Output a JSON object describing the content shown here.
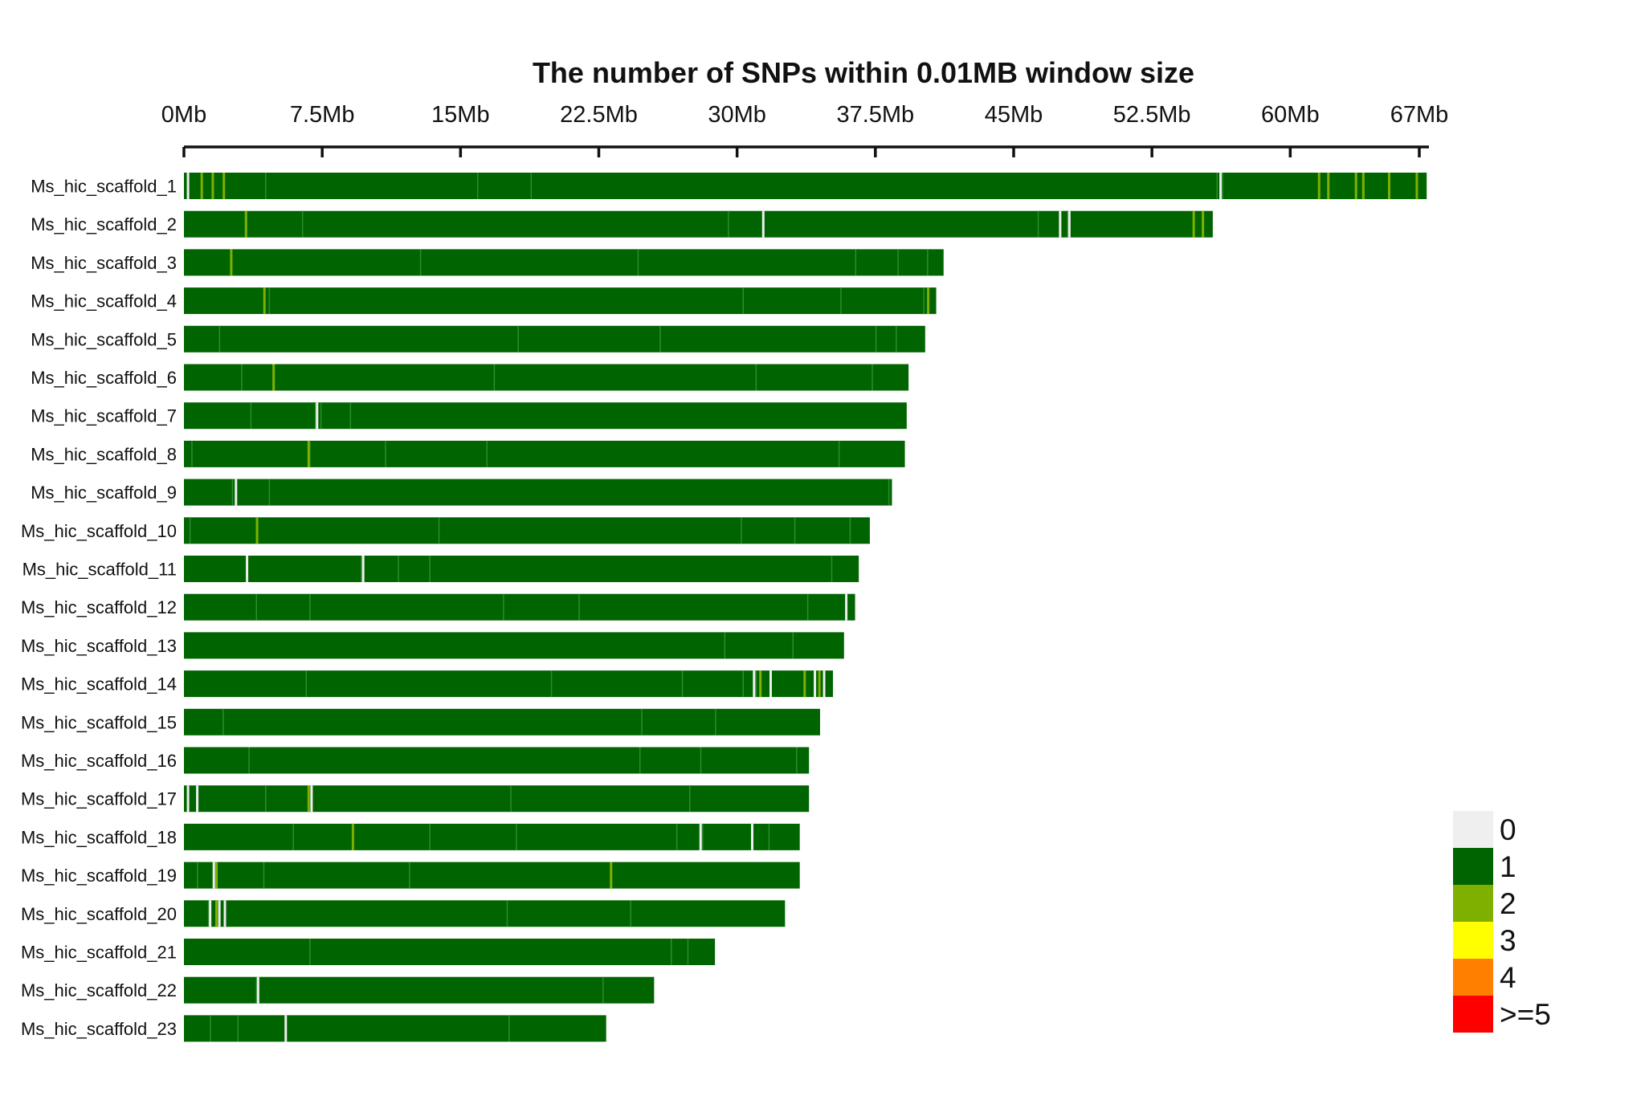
{
  "chart_data": {
    "type": "heatmap",
    "title": "The number of SNPs within 0.01MB window size",
    "xlim_mb": [
      0,
      67
    ],
    "x_ticks": [
      {
        "value": 0,
        "label": "0Mb"
      },
      {
        "value": 7.5,
        "label": "7.5Mb"
      },
      {
        "value": 15,
        "label": "15Mb"
      },
      {
        "value": 22.5,
        "label": "22.5Mb"
      },
      {
        "value": 30,
        "label": "30Mb"
      },
      {
        "value": 37.5,
        "label": "37.5Mb"
      },
      {
        "value": 45,
        "label": "45Mb"
      },
      {
        "value": 52.5,
        "label": "52.5Mb"
      },
      {
        "value": 60,
        "label": "60Mb"
      },
      {
        "value": 67,
        "label": "67Mb"
      }
    ],
    "legend": {
      "placement": "bottom-right",
      "items": [
        {
          "label": "0",
          "color": "#EFEFEF"
        },
        {
          "label": "1",
          "color": "#006400"
        },
        {
          "label": "2",
          "color": "#7FB000"
        },
        {
          "label": "3",
          "color": "#FFFF00"
        },
        {
          "label": "4",
          "color": "#FF8000"
        },
        {
          "label": ">=5",
          "color": "#FF0000"
        }
      ]
    },
    "rows": [
      {
        "name": "Ms_hic_scaffold_1",
        "length_mb": 67.4,
        "density1_gaps": [
          0.2,
          4.4,
          15.9,
          18.8,
          56.0,
          56.3
        ],
        "density2_marks": [
          0.9,
          1.5,
          2.1,
          61.5,
          62.0,
          63.5,
          63.9,
          65.3,
          66.8
        ],
        "density0_marks": [
          0.2,
          56.2
        ]
      },
      {
        "name": "Ms_hic_scaffold_2",
        "length_mb": 55.8,
        "density1_gaps": [
          6.4,
          29.5,
          31.4,
          46.3,
          47.5,
          47.9
        ],
        "density2_marks": [
          3.3,
          54.7,
          55.2
        ],
        "density0_marks": [
          31.4,
          47.5,
          48.0
        ]
      },
      {
        "name": "Ms_hic_scaffold_3",
        "length_mb": 41.2,
        "density1_gaps": [
          12.8,
          24.6,
          36.4,
          38.7,
          40.3
        ],
        "density2_marks": [
          2.5
        ],
        "density0_marks": []
      },
      {
        "name": "Ms_hic_scaffold_4",
        "length_mb": 40.8,
        "density1_gaps": [
          4.6,
          30.3,
          35.6,
          40.1
        ],
        "density2_marks": [
          4.3,
          40.3
        ],
        "density0_marks": []
      },
      {
        "name": "Ms_hic_scaffold_5",
        "length_mb": 40.2,
        "density1_gaps": [
          1.9,
          18.1,
          25.8,
          37.5,
          38.6
        ],
        "density2_marks": [],
        "density0_marks": []
      },
      {
        "name": "Ms_hic_scaffold_6",
        "length_mb": 39.3,
        "density1_gaps": [
          3.1,
          4.8,
          16.8,
          31.0,
          37.3
        ],
        "density2_marks": [
          4.8
        ],
        "density0_marks": []
      },
      {
        "name": "Ms_hic_scaffold_7",
        "length_mb": 39.2,
        "density1_gaps": [
          3.6,
          7.1,
          7.4,
          9.0
        ],
        "density2_marks": [],
        "density0_marks": [
          7.2
        ]
      },
      {
        "name": "Ms_hic_scaffold_8",
        "length_mb": 39.1,
        "density1_gaps": [
          0.4,
          6.8,
          10.9,
          16.4,
          35.5
        ],
        "density2_marks": [
          6.7
        ],
        "density0_marks": []
      },
      {
        "name": "Ms_hic_scaffold_9",
        "length_mb": 38.4,
        "density1_gaps": [
          2.6,
          4.6,
          38.2
        ],
        "density2_marks": [],
        "density0_marks": [
          2.8
        ]
      },
      {
        "name": "Ms_hic_scaffold_10",
        "length_mb": 37.2,
        "density1_gaps": [
          0.3,
          3.9,
          13.8,
          30.2,
          33.1,
          36.1
        ],
        "density2_marks": [
          3.9
        ],
        "density0_marks": []
      },
      {
        "name": "Ms_hic_scaffold_11",
        "length_mb": 36.6,
        "density1_gaps": [
          3.4,
          9.6,
          11.6,
          13.3,
          35.1
        ],
        "density2_marks": [],
        "density0_marks": [
          3.4,
          9.7
        ]
      },
      {
        "name": "Ms_hic_scaffold_12",
        "length_mb": 36.4,
        "density1_gaps": [
          3.9,
          6.8,
          17.3,
          21.4,
          33.8,
          35.9
        ],
        "density2_marks": [],
        "density0_marks": [
          35.9
        ]
      },
      {
        "name": "Ms_hic_scaffold_13",
        "length_mb": 35.8,
        "density1_gaps": [
          29.3,
          33.0
        ],
        "density2_marks": [],
        "density0_marks": []
      },
      {
        "name": "Ms_hic_scaffold_14",
        "length_mb": 35.2,
        "density1_gaps": [
          6.6,
          19.9,
          27.0,
          30.3,
          31.0
        ],
        "density2_marks": [
          31.2,
          33.6,
          34.4
        ],
        "density0_marks": [
          30.9,
          31.8,
          34.2,
          34.7
        ]
      },
      {
        "name": "Ms_hic_scaffold_15",
        "length_mb": 34.5,
        "density1_gaps": [
          2.1,
          24.8,
          28.8
        ],
        "density2_marks": [],
        "density0_marks": []
      },
      {
        "name": "Ms_hic_scaffold_16",
        "length_mb": 33.9,
        "density1_gaps": [
          3.5,
          24.7,
          28.0,
          33.2
        ],
        "density2_marks": [],
        "density0_marks": []
      },
      {
        "name": "Ms_hic_scaffold_17",
        "length_mb": 33.9,
        "density1_gaps": [
          0.7,
          4.4,
          6.9,
          17.7,
          27.4
        ],
        "density2_marks": [
          6.7
        ],
        "density0_marks": [
          0.2,
          0.7,
          6.9
        ]
      },
      {
        "name": "Ms_hic_scaffold_18",
        "length_mb": 33.4,
        "density1_gaps": [
          5.9,
          13.3,
          18.0,
          26.7,
          28.1,
          31.7
        ],
        "density2_marks": [
          9.1
        ],
        "density0_marks": [
          28.0,
          30.8
        ]
      },
      {
        "name": "Ms_hic_scaffold_19",
        "length_mb": 33.4,
        "density1_gaps": [
          0.7,
          1.6,
          4.3,
          12.2,
          23.1
        ],
        "density2_marks": [
          1.7,
          23.1
        ],
        "density0_marks": [
          1.6
        ]
      },
      {
        "name": "Ms_hic_scaffold_20",
        "length_mb": 32.6,
        "density1_gaps": [
          1.3,
          2.2,
          17.5,
          24.2
        ],
        "density2_marks": [
          1.7
        ],
        "density0_marks": [
          1.4,
          1.9,
          2.2
        ]
      },
      {
        "name": "Ms_hic_scaffold_21",
        "length_mb": 28.8,
        "density1_gaps": [
          6.8,
          26.4,
          27.3
        ],
        "density2_marks": [],
        "density0_marks": []
      },
      {
        "name": "Ms_hic_scaffold_22",
        "length_mb": 25.5,
        "density1_gaps": [
          3.9,
          22.7
        ],
        "density2_marks": [],
        "density0_marks": [
          4.0
        ]
      },
      {
        "name": "Ms_hic_scaffold_23",
        "length_mb": 22.9,
        "density1_gaps": [
          1.4,
          2.9,
          5.5,
          17.6
        ],
        "density2_marks": [],
        "density0_marks": [
          5.5
        ]
      }
    ]
  }
}
